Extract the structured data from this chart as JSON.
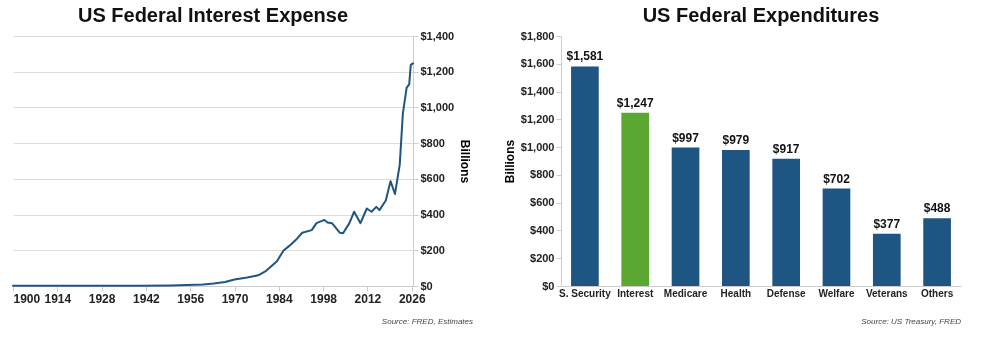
{
  "chart_data": [
    {
      "type": "line",
      "title": "US Federal Interest Expense",
      "ylabel": "Billions",
      "annotations": [
        "Source: FRED, Estimates"
      ],
      "series": [
        {
          "color": "#1f5582",
          "x": [
            1900,
            1910,
            1920,
            1930,
            1940,
            1950,
            1955,
            1960,
            1963.5,
            1967,
            1970,
            1974,
            1977.5,
            1980,
            1983.4,
            1985.5,
            1987.4,
            1989.5,
            1991.4,
            1994.4,
            1995.9,
            1998.4,
            1999.4,
            2000.8,
            2003.3,
            2004.3,
            2006.3,
            2007.8,
            2009.8,
            2011.8,
            2013.3,
            2014.8,
            2015.8,
            2017.8,
            2019.3,
            2020.7,
            2022.2,
            2023.2,
            2024.4,
            2025.2,
            2025.7,
            2026.4
          ],
          "values": [
            2,
            2,
            2,
            2,
            2,
            3,
            5,
            8,
            14,
            22,
            36,
            48,
            60,
            85,
            139,
            199,
            226,
            260,
            298,
            313,
            352,
            370,
            356,
            352,
            298,
            295,
            352,
            416,
            352,
            434,
            416,
            443,
            425,
            479,
            587,
            515,
            678,
            967,
            1111,
            1129,
            1238,
            1247
          ]
        }
      ],
      "xlim": [
        1900,
        2026.4
      ],
      "xticks": [
        1900,
        1914,
        1928,
        1942,
        1956,
        1970,
        1984,
        1998,
        2012,
        2026
      ],
      "ylim": [
        0,
        1400
      ],
      "yticks": [
        {
          "value": 0,
          "label": "$0"
        },
        {
          "value": 200,
          "label": "$200"
        },
        {
          "value": 400,
          "label": "$400"
        },
        {
          "value": 600,
          "label": "$600"
        },
        {
          "value": 800,
          "label": "$800"
        },
        {
          "value": 1000,
          "label": "$1,000"
        },
        {
          "value": 1200,
          "label": "$1,200"
        },
        {
          "value": 1400,
          "label": "$1,400"
        }
      ],
      "grid": "y",
      "legend": false
    },
    {
      "type": "bar",
      "title": "US Federal Expenditures",
      "ylabel": "Billions",
      "annotations": [
        "Source: US Treasury, FRED"
      ],
      "categories": [
        "S. Security",
        "Interest",
        "Medicare",
        "Health",
        "Defense",
        "Welfare",
        "Veterans",
        "Others"
      ],
      "values": [
        1581,
        1247,
        997,
        979,
        917,
        702,
        377,
        488
      ],
      "colors": [
        "#1f5582",
        "#5aa832",
        "#1f5582",
        "#1f5582",
        "#1f5582",
        "#1f5582",
        "#1f5582",
        "#1f5582"
      ],
      "value_labels": [
        "$1,581",
        "$1,247",
        "$997",
        "$979",
        "$917",
        "$702",
        "$377",
        "$488"
      ],
      "ylim": [
        0,
        1800
      ],
      "yticks": [
        {
          "value": 0,
          "label": "$0"
        },
        {
          "value": 200,
          "label": "$200"
        },
        {
          "value": 400,
          "label": "$400"
        },
        {
          "value": 600,
          "label": "$600"
        },
        {
          "value": 800,
          "label": "$800"
        },
        {
          "value": 1000,
          "label": "$1,000"
        },
        {
          "value": 1200,
          "label": "$1,200"
        },
        {
          "value": 1400,
          "label": "$1,400"
        },
        {
          "value": 1600,
          "label": "$1,600"
        },
        {
          "value": 1800,
          "label": "$1,800"
        }
      ],
      "grid": false,
      "legend": false
    }
  ]
}
